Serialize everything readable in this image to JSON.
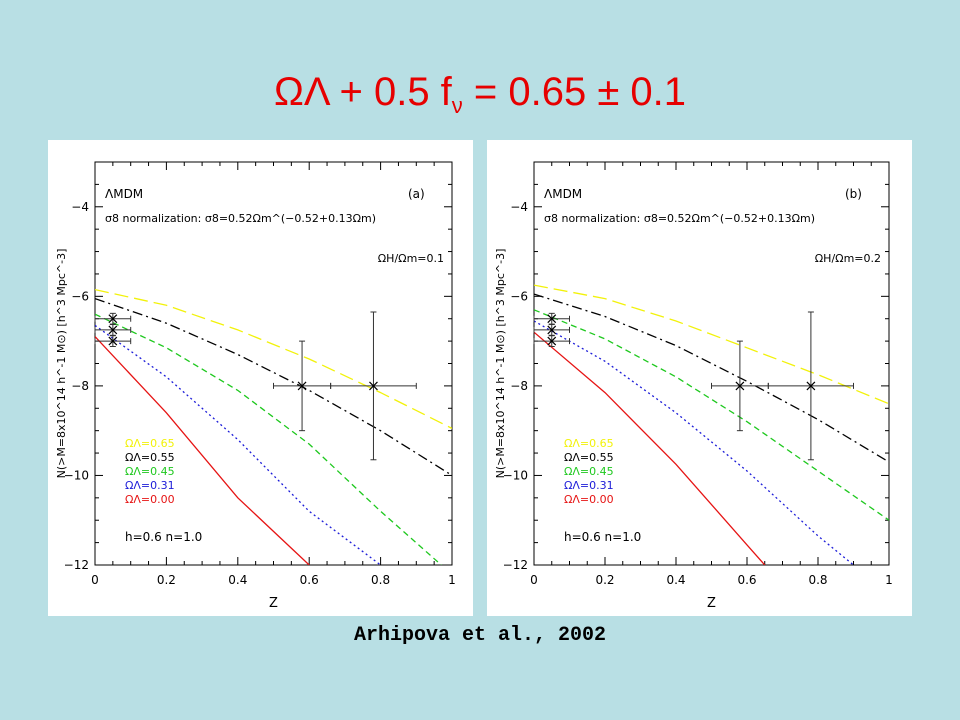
{
  "slide": {
    "title_main": "ΩΛ + 0.5 f",
    "title_sub": "ν",
    "title_rest": " = 0.65 ± 0.1",
    "citation": "Arhipova et al., 2002",
    "title_color": "#e60000",
    "background_color": "#b8dfe4"
  },
  "chart_data": [
    {
      "type": "line",
      "panel_label": "(a)",
      "model_label": "ΛMDM",
      "normalization_label": "σ8 normalization: σ8=0.52Ωm^(−0.52+0.13Ωm)",
      "ratio_label": "ΩH/Ωm=0.1",
      "params_label": "h=0.6   n=1.0",
      "xlabel": "Z",
      "ylabel": "N(>M=8x10^14 h^-1 M⊙) [h^3 Mpc^-3]",
      "xlim": [
        0,
        1
      ],
      "ylim": [
        -12,
        -3
      ],
      "x_ticks": [
        "0",
        "0.2",
        "0.4",
        "0.6",
        "0.8",
        "1"
      ],
      "y_ticks": [
        "−4",
        "−6",
        "−8",
        "−10",
        "−12"
      ],
      "series": [
        {
          "name": "ΩΛ=0.65",
          "color": "#f2f20a",
          "dash": "14,6",
          "x": [
            0,
            0.2,
            0.4,
            0.6,
            0.8,
            1.0
          ],
          "y": [
            -5.85,
            -6.2,
            -6.75,
            -7.4,
            -8.15,
            -8.95
          ]
        },
        {
          "name": "ΩΛ=0.55",
          "color": "#000000",
          "dash": "10,4,2,4",
          "x": [
            0,
            0.2,
            0.4,
            0.6,
            0.8,
            1.0
          ],
          "y": [
            -6.05,
            -6.6,
            -7.3,
            -8.1,
            -9.0,
            -10.0
          ]
        },
        {
          "name": "ΩΛ=0.45",
          "color": "#1ec81e",
          "dash": "6,4",
          "x": [
            0,
            0.2,
            0.4,
            0.6,
            0.8,
            0.97
          ],
          "y": [
            -6.4,
            -7.15,
            -8.1,
            -9.3,
            -10.8,
            -12.0
          ]
        },
        {
          "name": "ΩΛ=0.31",
          "color": "#1c1cd8",
          "dash": "2,3",
          "x": [
            0,
            0.2,
            0.4,
            0.6,
            0.8
          ],
          "y": [
            -6.65,
            -7.8,
            -9.2,
            -10.8,
            -12.0
          ]
        },
        {
          "name": "ΩΛ=0.00",
          "color": "#e61414",
          "dash": "",
          "x": [
            0,
            0.2,
            0.4,
            0.6
          ],
          "y": [
            -6.9,
            -8.6,
            -10.5,
            -12.0
          ]
        }
      ],
      "data_points": [
        {
          "x": 0.05,
          "y": -6.5,
          "xerr": 0.05,
          "yerr": 0.12
        },
        {
          "x": 0.05,
          "y": -6.75,
          "xerr": 0.05,
          "yerr": 0.12
        },
        {
          "x": 0.05,
          "y": -7.0,
          "xerr": 0.05,
          "yerr": 0.12
        },
        {
          "x": 0.58,
          "y": -8.0,
          "xerr": 0.08,
          "yerr": 1.0
        },
        {
          "x": 0.78,
          "y": -8.0,
          "xerr": 0.12,
          "yerr": 1.65
        }
      ]
    },
    {
      "type": "line",
      "panel_label": "(b)",
      "model_label": "ΛMDM",
      "normalization_label": "σ8 normalization: σ8=0.52Ωm^(−0.52+0.13Ωm)",
      "ratio_label": "ΩH/Ωm=0.2",
      "params_label": "h=0.6   n=1.0",
      "xlabel": "Z",
      "ylabel": "N(>M=8x10^14 h^-1 M⊙) [h^3 Mpc^-3]",
      "xlim": [
        0,
        1
      ],
      "ylim": [
        -12,
        -3
      ],
      "x_ticks": [
        "0",
        "0.2",
        "0.4",
        "0.6",
        "0.8",
        "1"
      ],
      "y_ticks": [
        "−4",
        "−6",
        "−8",
        "−10",
        "−12"
      ],
      "series": [
        {
          "name": "ΩΛ=0.65",
          "color": "#f2f20a",
          "dash": "14,6",
          "x": [
            0,
            0.2,
            0.4,
            0.6,
            0.8,
            1.0
          ],
          "y": [
            -5.75,
            -6.05,
            -6.55,
            -7.15,
            -7.75,
            -8.4
          ]
        },
        {
          "name": "ΩΛ=0.55",
          "color": "#000000",
          "dash": "10,4,2,4",
          "x": [
            0,
            0.2,
            0.4,
            0.6,
            0.8,
            1.0
          ],
          "y": [
            -5.95,
            -6.45,
            -7.1,
            -7.9,
            -8.75,
            -9.7
          ]
        },
        {
          "name": "ΩΛ=0.45",
          "color": "#1ec81e",
          "dash": "6,4",
          "x": [
            0,
            0.2,
            0.4,
            0.6,
            0.8,
            1.0
          ],
          "y": [
            -6.3,
            -6.95,
            -7.8,
            -8.8,
            -9.9,
            -11.0
          ]
        },
        {
          "name": "ΩΛ=0.31",
          "color": "#1c1cd8",
          "dash": "2,3",
          "x": [
            0,
            0.2,
            0.4,
            0.6,
            0.8,
            0.9
          ],
          "y": [
            -6.55,
            -7.45,
            -8.6,
            -9.9,
            -11.35,
            -12.0
          ]
        },
        {
          "name": "ΩΛ=0.00",
          "color": "#e61414",
          "dash": "",
          "x": [
            0,
            0.2,
            0.4,
            0.6,
            0.65
          ],
          "y": [
            -6.8,
            -8.15,
            -9.75,
            -11.55,
            -12.0
          ]
        }
      ],
      "data_points": [
        {
          "x": 0.05,
          "y": -6.5,
          "xerr": 0.05,
          "yerr": 0.12
        },
        {
          "x": 0.05,
          "y": -6.75,
          "xerr": 0.05,
          "yerr": 0.12
        },
        {
          "x": 0.05,
          "y": -7.0,
          "xerr": 0.05,
          "yerr": 0.12
        },
        {
          "x": 0.58,
          "y": -8.0,
          "xerr": 0.08,
          "yerr": 1.0
        },
        {
          "x": 0.78,
          "y": -8.0,
          "xerr": 0.12,
          "yerr": 1.65
        }
      ]
    }
  ]
}
